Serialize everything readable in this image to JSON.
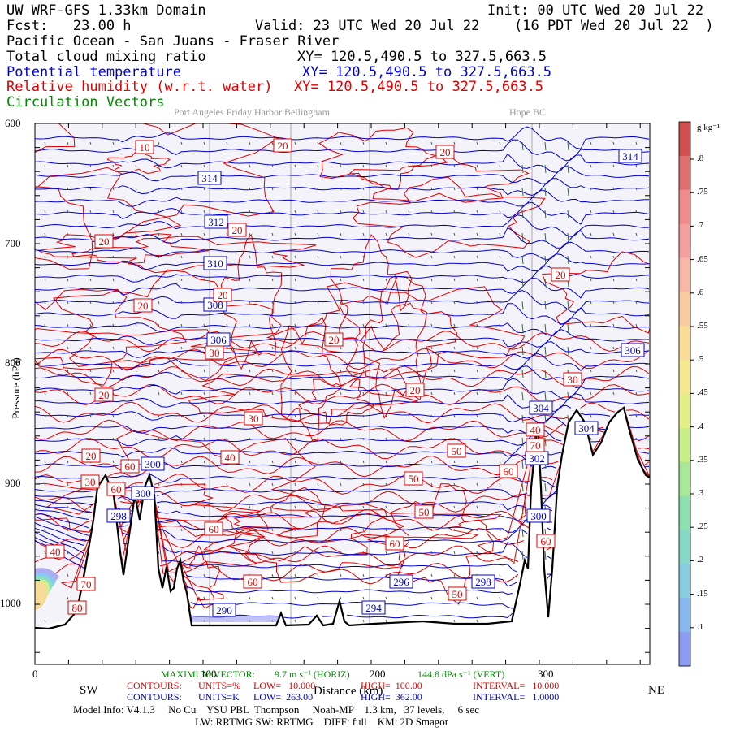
{
  "header": {
    "line1_left": "UW WRF-GFS 1.33km Domain",
    "line1_right": "Init: 00 UTC Wed 20 Jul 22",
    "line2_left": "Fcst:   23.00 h",
    "line2_mid": "Valid: 23 UTC Wed 20 Jul 22",
    "line2_right": "(16 PDT Wed 20 Jul 22  )",
    "region": "Pacific Ocean - San Juans - Fraser River",
    "field1": "Total cloud mixing ratio",
    "field1_xy": "XY= 120.5,490.5 to 327.5,663.5",
    "field2": "Potential temperature",
    "field2_xy": "XY= 120.5,490.5 to 327.5,663.5",
    "field3": "Relative humidity (w.r.t. water)",
    "field3_xy": "XY= 120.5,490.5 to 327.5,663.5",
    "field4": "Circulation Vectors"
  },
  "places": {
    "west": "Port Angeles Friday Harbor Bellingham",
    "east": "Hope BC"
  },
  "axes": {
    "y_ticks": [
      "600",
      "700",
      "800",
      "900",
      "1000"
    ],
    "x_ticks": [
      "0",
      "100",
      "200",
      "300"
    ],
    "sw": "SW",
    "ne": "NE",
    "xlabel": "Distance (km)",
    "ylabel": "Pressure (hPa)"
  },
  "colorbar": {
    "unit": "g kg⁻¹",
    "labels": [
      ".8",
      ".75",
      ".7",
      ".65",
      ".6",
      ".55",
      ".5",
      ".45",
      ".4",
      ".35",
      ".3",
      ".25",
      ".2",
      ".15",
      ".1"
    ],
    "colors": [
      "#d05050",
      "#e07070",
      "#f08c8c",
      "#f5a0a0",
      "#f7b8a8",
      "#f8cba0",
      "#f8dc98",
      "#f3e88e",
      "#e2ef88",
      "#c8ee88",
      "#a8e898",
      "#8ee0b0",
      "#88d8c8",
      "#88cce0",
      "#88b8ee",
      "#8c9cf0"
    ]
  },
  "footer": {
    "max_vector_label": "MAXIMUM VECTOR:",
    "max_vector_horiz": "9.7 m s⁻¹ (HORIZ)",
    "max_vector_vert": "144.8 dPa s⁻¹ (VERT)",
    "contours_label": "CONTOURS:",
    "red_units": "UNITS=%",
    "red_low": "LOW=   10.000",
    "red_high": "HIGH=  100.00",
    "red_interval": "INTERVAL=   10.000",
    "blue_units": "UNITS=K",
    "blue_low": "LOW=  263.00",
    "blue_high": "HIGH=  362.00",
    "blue_interval": "INTERVAL=   1.0000",
    "model_info": "Model Info: V4.1.3     No Cu    YSU PBL  Thompson     Noah-MP    1.3 km,   37 levels,     6 sec",
    "radiation": "LW: RRTMG SW: RRTMG    DIFF: full    KM: 2D Smagor"
  },
  "contours": {
    "theta_labels": [
      "314",
      "314",
      "312",
      "310",
      "308",
      "306",
      "306",
      "304",
      "304",
      "302",
      "300",
      "300",
      "300",
      "298",
      "296",
      "298",
      "294",
      "290"
    ],
    "rh_labels": [
      "10",
      "20",
      "20",
      "20",
      "20",
      "20",
      "20",
      "20",
      "20",
      "20",
      "20",
      "30",
      "30",
      "30",
      "40",
      "40",
      "50",
      "50",
      "50",
      "60",
      "60",
      "60",
      "60",
      "60",
      "60",
      "50",
      "70",
      "80",
      "40",
      "30",
      "60",
      "20",
      "70"
    ]
  },
  "colors": {
    "theta": "#0000cc",
    "rh": "#dd0000",
    "wind": "#008800",
    "shading": "#f4f2fa",
    "terrain": "#000000"
  }
}
